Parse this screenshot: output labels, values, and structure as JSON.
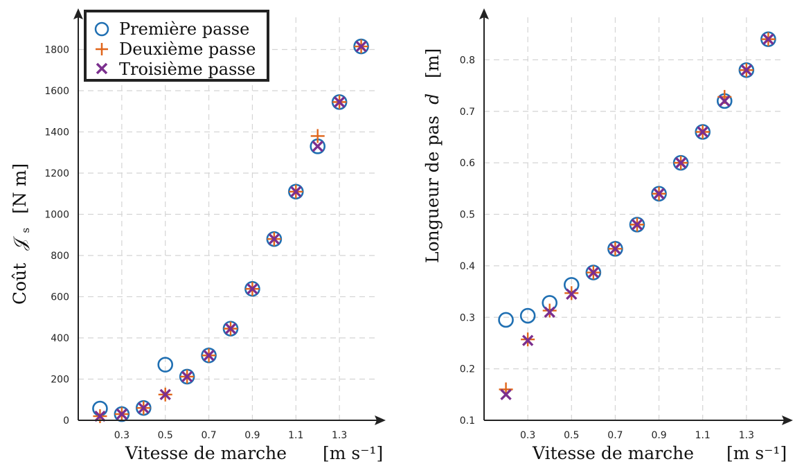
{
  "colors": {
    "first": "#1f6fb2",
    "second": "#e0651a",
    "third": "#7b2f8e"
  },
  "legend": {
    "first": "Première passe",
    "second": "Deuxième passe",
    "third": "Troisième passe"
  },
  "chart_data": [
    {
      "type": "scatter",
      "xlabel": "Vitesse de marche",
      "xunit": "[m s⁻¹]",
      "ylabel_text": "Coût",
      "ylabel_symbol": "𝒥",
      "ylabel_sub": "s",
      "ylabel_unit": "[N m]",
      "xlim": [
        0.1,
        1.5
      ],
      "ylim": [
        0,
        2000
      ],
      "xticks": [
        "0.3",
        "0.5",
        "0.7",
        "0.9",
        "1.1",
        "1.3"
      ],
      "yticks": [
        "0",
        "200",
        "400",
        "600",
        "800",
        "1000",
        "1200",
        "1400",
        "1600",
        "1800"
      ],
      "grid": true,
      "legend_position": "top-left",
      "x": [
        0.2,
        0.3,
        0.4,
        0.5,
        0.6,
        0.7,
        0.8,
        0.9,
        1.0,
        1.1,
        1.2,
        1.3,
        1.4
      ],
      "series": [
        {
          "name": "Première passe",
          "marker": "circle",
          "values": [
            57,
            30,
            60,
            270,
            212,
            315,
            445,
            638,
            880,
            1110,
            1330,
            1545,
            1815
          ]
        },
        {
          "name": "Deuxième passe",
          "marker": "plus",
          "values": [
            20,
            30,
            60,
            125,
            212,
            315,
            445,
            638,
            880,
            1110,
            1380,
            1545,
            1815
          ]
        },
        {
          "name": "Troisième passe",
          "marker": "x",
          "values": [
            20,
            30,
            60,
            125,
            212,
            315,
            445,
            638,
            880,
            1110,
            1330,
            1545,
            1815
          ]
        }
      ]
    },
    {
      "type": "scatter",
      "xlabel": "Vitesse de marche",
      "xunit": "[m s⁻¹]",
      "ylabel_text": "Longueur de pas",
      "ylabel_symbol": "d",
      "ylabel_unit": "[m]",
      "xlim": [
        0.1,
        1.5
      ],
      "ylim": [
        0.1,
        0.9
      ],
      "xticks": [
        "0.3",
        "0.5",
        "0.7",
        "0.9",
        "1.1",
        "1.3"
      ],
      "yticks": [
        "0.1",
        "0.2",
        "0.3",
        "0.4",
        "0.5",
        "0.6",
        "0.7",
        "0.8"
      ],
      "grid": true,
      "x": [
        0.2,
        0.3,
        0.4,
        0.5,
        0.6,
        0.7,
        0.8,
        0.9,
        1.0,
        1.1,
        1.2,
        1.3,
        1.4
      ],
      "series": [
        {
          "name": "Première passe",
          "marker": "circle",
          "values": [
            0.295,
            0.303,
            0.328,
            0.363,
            0.387,
            0.433,
            0.48,
            0.54,
            0.6,
            0.66,
            0.72,
            0.78,
            0.84
          ]
        },
        {
          "name": "Deuxième passe",
          "marker": "plus",
          "values": [
            0.16,
            0.257,
            0.313,
            0.347,
            0.387,
            0.433,
            0.48,
            0.54,
            0.6,
            0.66,
            0.728,
            0.78,
            0.84
          ]
        },
        {
          "name": "Troisième passe",
          "marker": "x",
          "values": [
            0.15,
            0.255,
            0.31,
            0.345,
            0.387,
            0.433,
            0.48,
            0.54,
            0.6,
            0.66,
            0.72,
            0.78,
            0.84
          ]
        }
      ]
    }
  ]
}
